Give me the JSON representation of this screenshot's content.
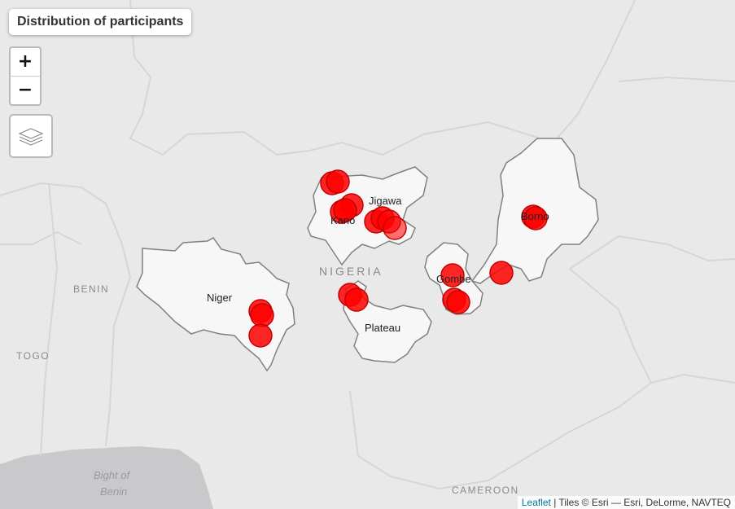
{
  "title": "Distribution of participants",
  "zoom": {
    "in_label": "+",
    "out_label": "−"
  },
  "layers_control": {
    "icon": "layers-icon"
  },
  "attribution": {
    "leaflet_link": "Leaflet",
    "text": " | Tiles © Esri — Esri, DeLorme, NAVTEQ"
  },
  "map": {
    "country_labels": {
      "nigeria": "NIGERIA",
      "benin": "BENIN",
      "togo": "TOGO",
      "cameroon": "CAMEROON"
    },
    "water_label_line1": "Bight of",
    "water_label_line2": "Benin",
    "states": [
      {
        "name": "Niger"
      },
      {
        "name": "Kano"
      },
      {
        "name": "Jigawa"
      },
      {
        "name": "Plateau"
      },
      {
        "name": "Gombe"
      },
      {
        "name": "Borno"
      }
    ],
    "marker_color": "#ff0000",
    "state_fill": "#f7f7f7",
    "state_stroke": "#808080"
  }
}
